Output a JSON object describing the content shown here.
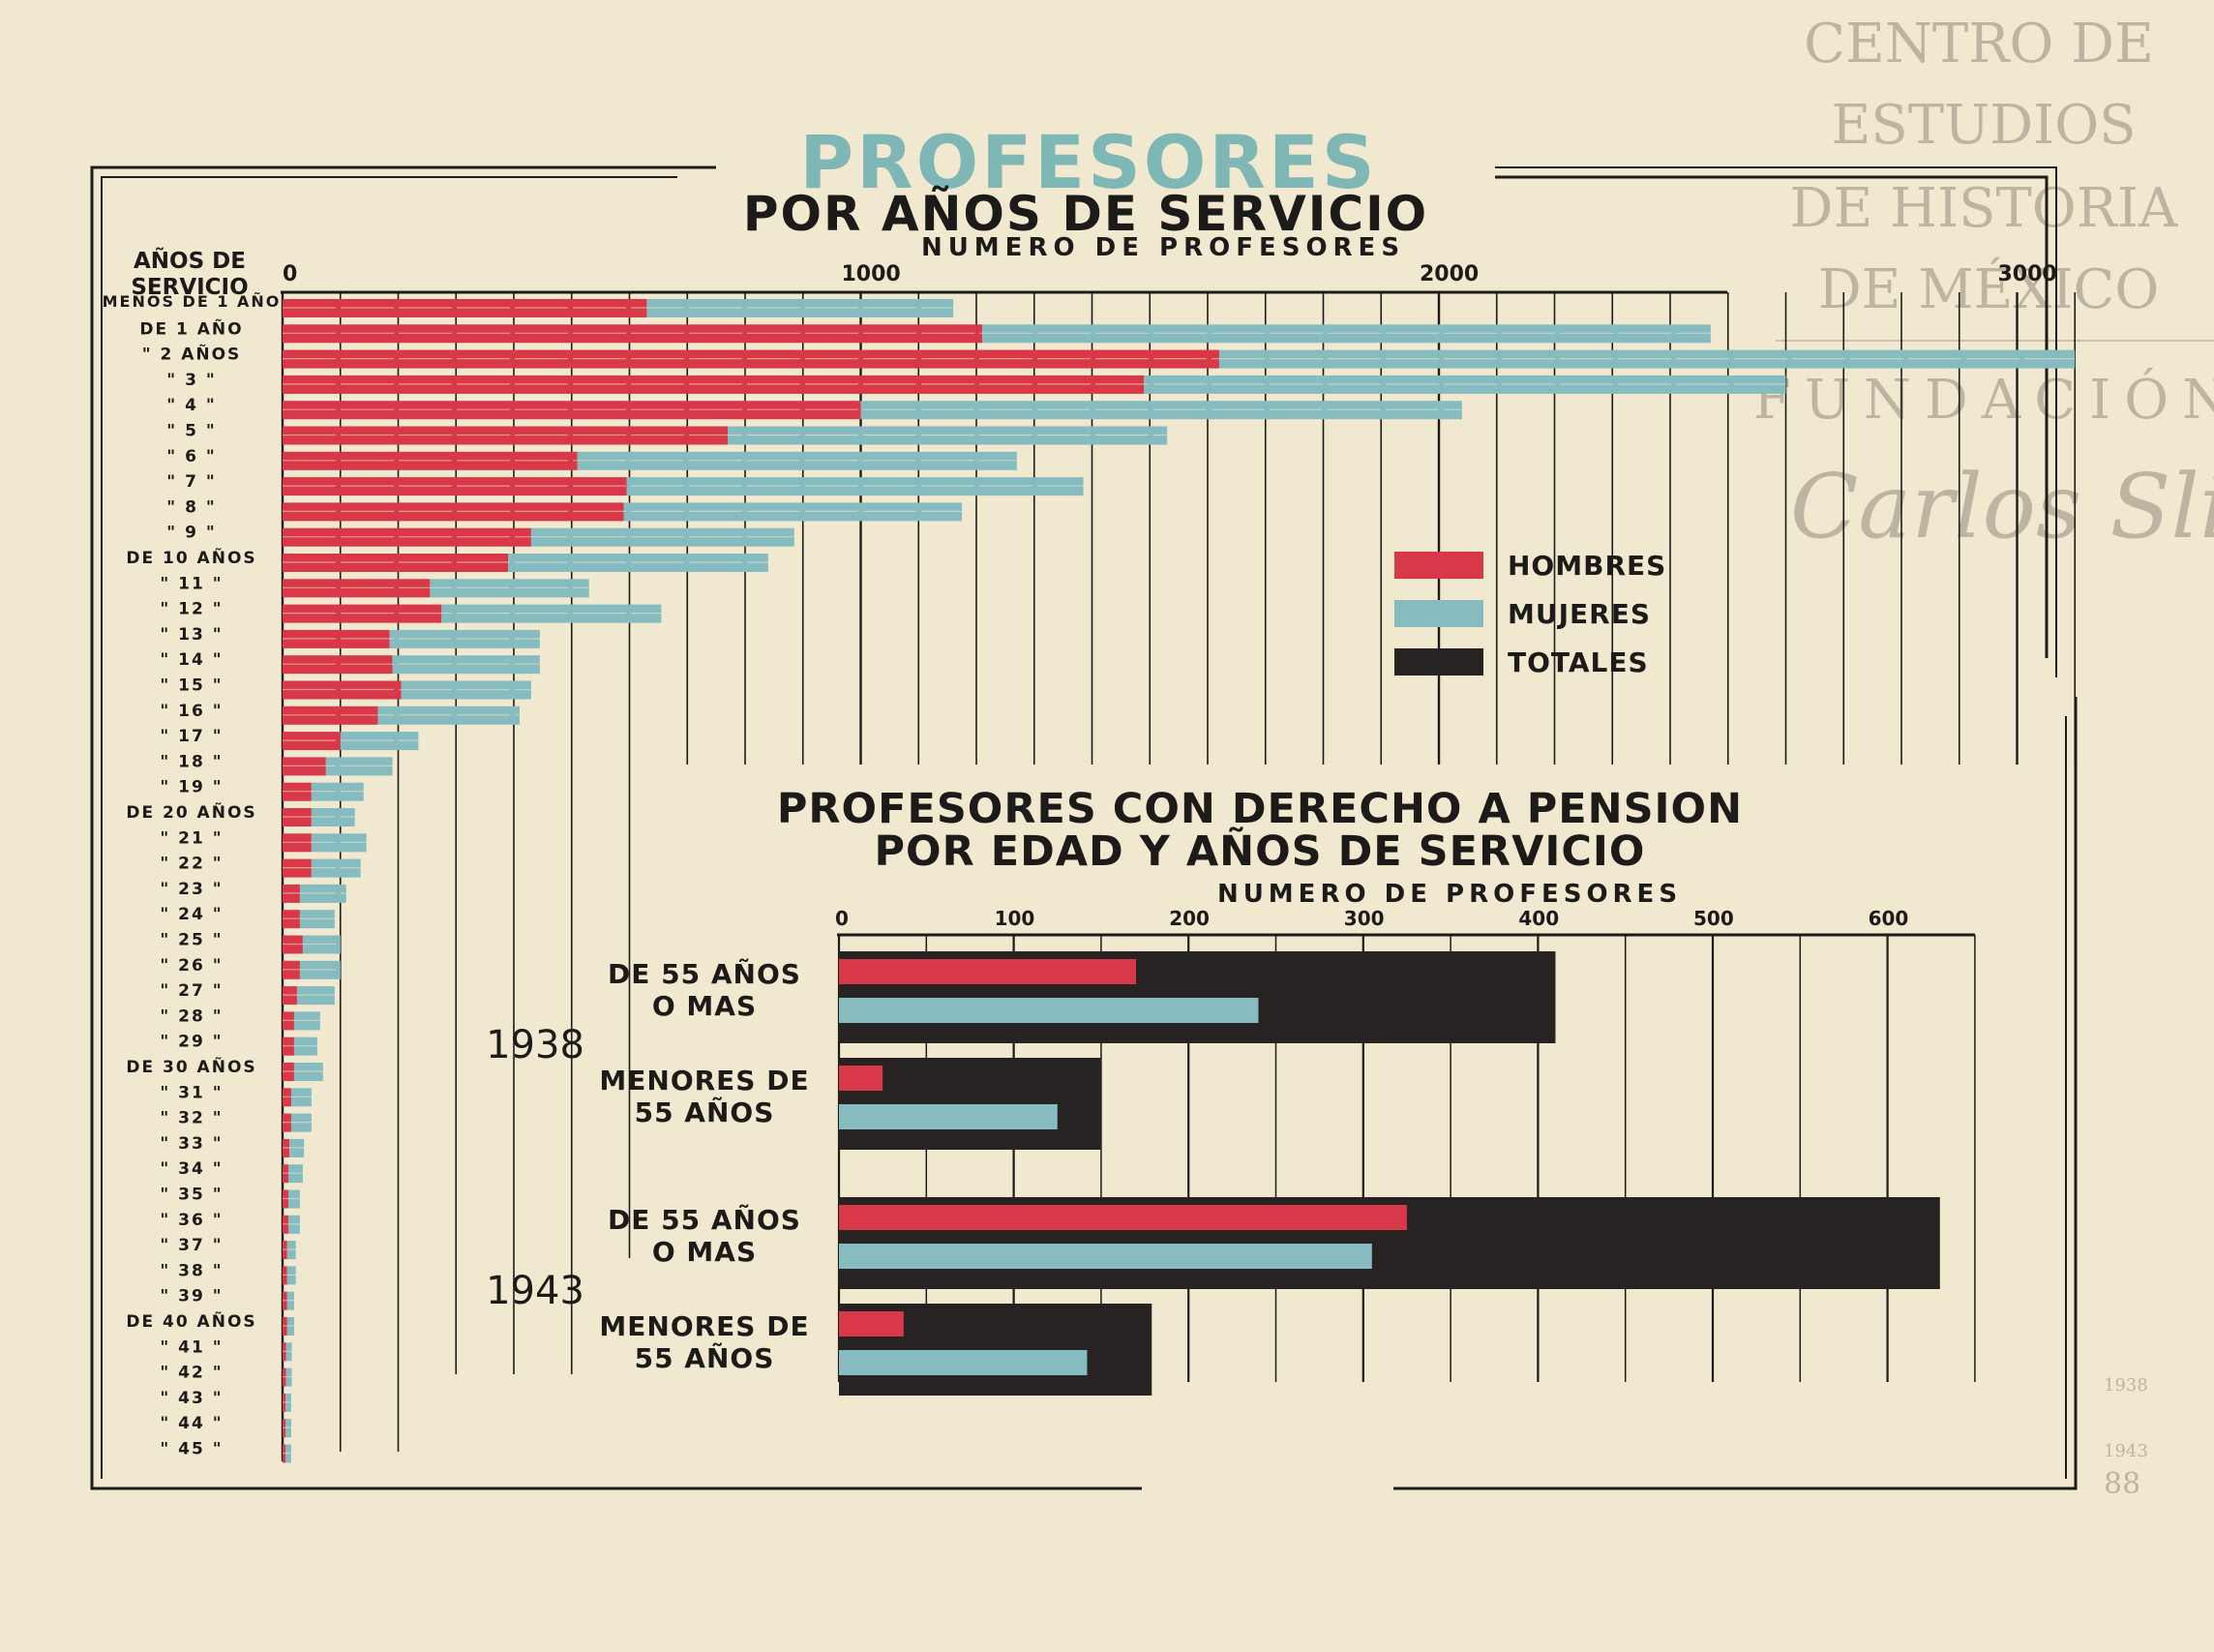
{
  "title": "PROFESORES",
  "subtitle": "POR AÑOS DE SERVICIO",
  "watermark": {
    "lines": [
      "CENTRO DE",
      "ESTUDIOS",
      "DE HISTORIA",
      "DE MÉXICO"
    ],
    "fundacion": "FUNDACIÓN",
    "signature": "Carlos Slim"
  },
  "margin_marks": [
    "1938",
    "1943",
    "88"
  ],
  "colors": {
    "hombres": "#d83848",
    "mujeres": "#86bcc0",
    "totales": "#272322",
    "ink": "#1d1b19",
    "title_teal": "#7fb7b6"
  },
  "legend": [
    {
      "label": "HOMBRES",
      "color": "#d83848"
    },
    {
      "label": "MUJERES",
      "color": "#86bcc0"
    },
    {
      "label": "TOTALES",
      "color": "#272322"
    }
  ],
  "chart_data": [
    {
      "type": "bar",
      "title": "PROFESORES",
      "subtitle": "POR AÑOS DE SERVICIO",
      "xlabel": "NUMERO DE PROFESORES",
      "ylabel_lines": [
        "AÑOS DE",
        "SERVICIO"
      ],
      "xlim": [
        0,
        3100
      ],
      "xticks": [
        0,
        1000,
        2000,
        3000
      ],
      "grid": true,
      "stacked": true,
      "categories": [
        "MENOS DE 1 AÑO",
        "DE 1 AÑO",
        "\" 2 AÑOS",
        "\" 3 \"",
        "\" 4 \"",
        "\" 5 \"",
        "\" 6 \"",
        "\" 7 \"",
        "\" 8 \"",
        "\" 9 \"",
        "DE 10 AÑOS",
        "\" 11 \"",
        "\" 12 \"",
        "\" 13 \"",
        "\" 14 \"",
        "\" 15 \"",
        "\" 16 \"",
        "\" 17 \"",
        "\" 18 \"",
        "\" 19 \"",
        "DE 20 AÑOS",
        "\" 21 \"",
        "\" 22 \"",
        "\" 23 \"",
        "\" 24 \"",
        "\" 25 \"",
        "\" 26 \"",
        "\" 27 \"",
        "\" 28 \"",
        "\" 29 \"",
        "DE 30 AÑOS",
        "\" 31 \"",
        "\" 32 \"",
        "\" 33 \"",
        "\" 34 \"",
        "\" 35 \"",
        "\" 36 \"",
        "\" 37 \"",
        "\" 38 \"",
        "\" 39 \"",
        "DE 40 AÑOS",
        "\" 41 \"",
        "\" 42 \"",
        "\" 43 \"",
        "\" 44 \"",
        "\" 45 \""
      ],
      "series": [
        {
          "name": "HOMBRES",
          "values": [
            630,
            1210,
            1620,
            1490,
            1000,
            770,
            510,
            595,
            590,
            430,
            390,
            255,
            275,
            185,
            190,
            205,
            165,
            100,
            75,
            50,
            50,
            50,
            50,
            30,
            30,
            35,
            30,
            25,
            20,
            20,
            20,
            15,
            15,
            12,
            10,
            10,
            10,
            8,
            8,
            8,
            8,
            6,
            6,
            5,
            5,
            5
          ]
        },
        {
          "name": "MUJERES",
          "values": [
            530,
            1260,
            1480,
            1110,
            1040,
            760,
            760,
            790,
            585,
            455,
            450,
            275,
            380,
            260,
            255,
            225,
            245,
            135,
            115,
            90,
            75,
            95,
            85,
            80,
            60,
            65,
            70,
            65,
            45,
            40,
            50,
            35,
            35,
            25,
            25,
            20,
            20,
            15,
            15,
            12,
            12,
            10,
            10,
            10,
            10,
            10
          ]
        }
      ]
    },
    {
      "type": "bar",
      "title": "PROFESORES CON DERECHO A PENSION",
      "subtitle": "POR EDAD Y AÑOS DE SERVICIO",
      "xlabel": "NUMERO DE PROFESORES",
      "xlim": [
        0,
        650
      ],
      "xticks": [
        0,
        100,
        200,
        300,
        400,
        500,
        600
      ],
      "grid": true,
      "groups": [
        {
          "year": "1938",
          "rows": [
            {
              "label_lines": [
                "DE 55 AÑOS",
                "O MAS"
              ],
              "hombres": 170,
              "mujeres": 240,
              "totales": 410
            },
            {
              "label_lines": [
                "MENORES DE",
                "55 AÑOS"
              ],
              "hombres": 25,
              "mujeres": 125,
              "totales": 150
            }
          ]
        },
        {
          "year": "1943",
          "rows": [
            {
              "label_lines": [
                "DE 55 AÑOS",
                "O MAS"
              ],
              "hombres": 325,
              "mujeres": 305,
              "totales": 630
            },
            {
              "label_lines": [
                "MENORES DE",
                "55 AÑOS"
              ],
              "hombres": 37,
              "mujeres": 142,
              "totales": 179
            }
          ]
        }
      ]
    }
  ]
}
